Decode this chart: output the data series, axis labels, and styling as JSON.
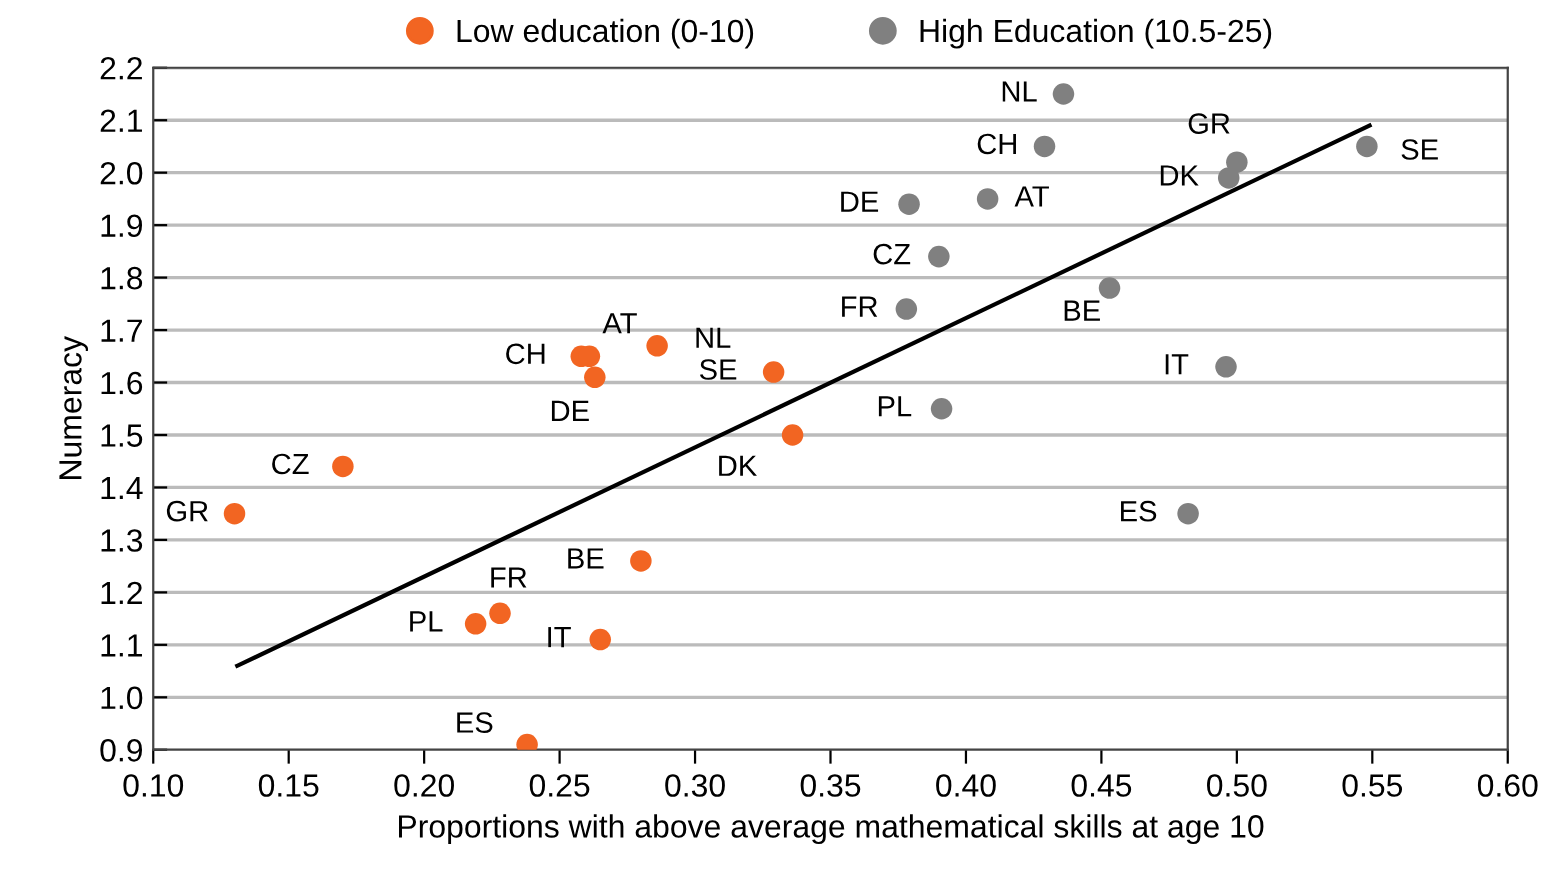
{
  "chart_data": {
    "type": "scatter",
    "xlabel": "Proportions with above average mathematical skills at age 10",
    "ylabel": "Numeracy",
    "xlim": [
      0.1,
      0.6
    ],
    "xticks": [
      {
        "value": 0.1,
        "label": "0.10"
      },
      {
        "value": 0.15,
        "label": "0.15"
      },
      {
        "value": 0.2,
        "label": "0.20"
      },
      {
        "value": 0.25,
        "label": "0.25"
      },
      {
        "value": 0.3,
        "label": "0.30"
      },
      {
        "value": 0.35,
        "label": "0.35"
      },
      {
        "value": 0.4,
        "label": "0.40"
      },
      {
        "value": 0.45,
        "label": "0.45"
      },
      {
        "value": 0.5,
        "label": "0.50"
      },
      {
        "value": 0.55,
        "label": "0.55"
      },
      {
        "value": 0.6,
        "label": "0.60"
      }
    ],
    "ylim": [
      0.9,
      2.2
    ],
    "yticks": [
      {
        "value": 0.9,
        "label": "0.9"
      },
      {
        "value": 1.0,
        "label": "1.0"
      },
      {
        "value": 1.1,
        "label": "1.1"
      },
      {
        "value": 1.2,
        "label": "1.2"
      },
      {
        "value": 1.3,
        "label": "1.3"
      },
      {
        "value": 1.4,
        "label": "1.4"
      },
      {
        "value": 1.5,
        "label": "1.5"
      },
      {
        "value": 1.6,
        "label": "1.6"
      },
      {
        "value": 1.7,
        "label": "1.7"
      },
      {
        "value": 1.8,
        "label": "1.8"
      },
      {
        "value": 1.9,
        "label": "1.9"
      },
      {
        "value": 2.0,
        "label": "2.0"
      },
      {
        "value": 2.1,
        "label": "2.1"
      },
      {
        "value": 2.2,
        "label": "2.2"
      }
    ],
    "grid": "y",
    "legend": "top",
    "series": [
      {
        "name": "Low education (0-10)",
        "color": "#f26522",
        "marker": "circle",
        "x": [
          0.13,
          0.17,
          0.258,
          0.261,
          0.263,
          0.286,
          0.329,
          0.336,
          0.28,
          0.228,
          0.219,
          0.265,
          0.238
        ],
        "values": [
          1.35,
          1.44,
          1.65,
          1.65,
          1.61,
          1.67,
          1.62,
          1.5,
          1.26,
          1.16,
          1.14,
          1.11,
          0.91
        ]
      },
      {
        "name": "High Education (10.5-25)",
        "color": "#808080",
        "marker": "circle",
        "x": [
          0.436,
          0.429,
          0.5,
          0.548,
          0.497,
          0.379,
          0.408,
          0.39,
          0.453,
          0.378,
          0.496,
          0.391,
          0.482
        ],
        "values": [
          2.15,
          2.05,
          2.02,
          2.05,
          1.99,
          1.94,
          1.95,
          1.84,
          1.78,
          1.74,
          1.63,
          1.55,
          1.35
        ]
      },
      {
        "type": "line",
        "color": "#000000",
        "x": [
          0.131,
          0.549
        ],
        "values": [
          1.06,
          2.09
        ]
      }
    ],
    "annotations": [
      {
        "text": "GR",
        "x": 0.13,
        "y": 1.35
      },
      {
        "text": "CZ",
        "x": 0.17,
        "y": 1.44
      },
      {
        "text": "CH",
        "x": 0.258,
        "y": 1.65
      },
      {
        "text": "AT",
        "x": 0.261,
        "y": 1.65
      },
      {
        "text": "DE",
        "x": 0.263,
        "y": 1.61
      },
      {
        "text": "NL",
        "x": 0.286,
        "y": 1.67
      },
      {
        "text": "SE",
        "x": 0.329,
        "y": 1.62
      },
      {
        "text": "DK",
        "x": 0.336,
        "y": 1.5
      },
      {
        "text": "BE",
        "x": 0.28,
        "y": 1.26
      },
      {
        "text": "FR",
        "x": 0.228,
        "y": 1.16
      },
      {
        "text": "PL",
        "x": 0.219,
        "y": 1.14
      },
      {
        "text": "IT",
        "x": 0.265,
        "y": 1.11
      },
      {
        "text": "ES",
        "x": 0.238,
        "y": 0.91
      },
      {
        "text": "NL",
        "x": 0.436,
        "y": 2.15
      },
      {
        "text": "CH",
        "x": 0.429,
        "y": 2.05
      },
      {
        "text": "GR",
        "x": 0.5,
        "y": 2.02
      },
      {
        "text": "SE",
        "x": 0.548,
        "y": 2.05
      },
      {
        "text": "DK",
        "x": 0.497,
        "y": 1.99
      },
      {
        "text": "DE",
        "x": 0.379,
        "y": 1.94
      },
      {
        "text": "AT",
        "x": 0.408,
        "y": 1.95
      },
      {
        "text": "CZ",
        "x": 0.39,
        "y": 1.84
      },
      {
        "text": "BE",
        "x": 0.453,
        "y": 1.78
      },
      {
        "text": "FR",
        "x": 0.378,
        "y": 1.74
      },
      {
        "text": "IT",
        "x": 0.496,
        "y": 1.63
      },
      {
        "text": "PL",
        "x": 0.391,
        "y": 1.55
      },
      {
        "text": "ES",
        "x": 0.482,
        "y": 1.35
      }
    ]
  }
}
